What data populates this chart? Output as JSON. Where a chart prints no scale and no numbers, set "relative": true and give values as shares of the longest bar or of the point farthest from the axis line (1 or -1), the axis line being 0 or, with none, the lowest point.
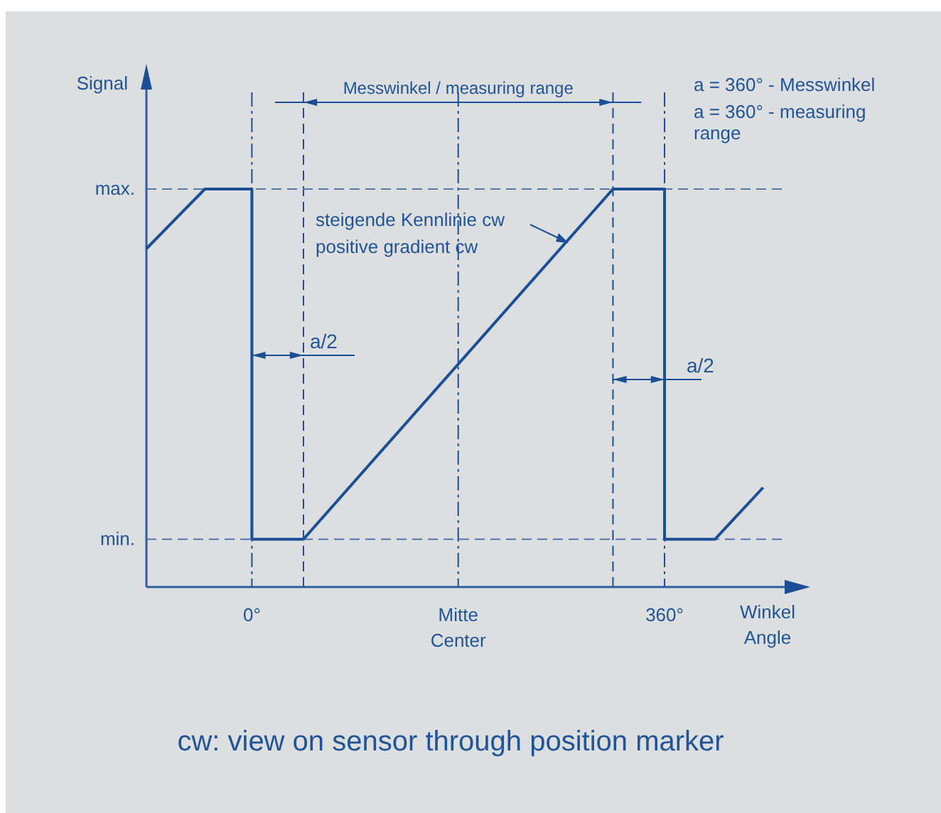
{
  "chart_data": {
    "type": "line",
    "relative": true,
    "xlabel": "Winkel\nAngle",
    "xlim": [
      -92,
      466
    ],
    "xticks": [
      {
        "value": 0,
        "label": "0°"
      },
      {
        "value": 180,
        "label": "Mitte\nCenter"
      },
      {
        "value": 360,
        "label": "360°"
      }
    ],
    "series": [
      {
        "color": "#1a4f96",
        "x": [
          -92,
          -41,
          0,
          0,
          45,
          315,
          360,
          360,
          404,
          446
        ],
        "values": [
          0.85,
          1,
          1,
          0.12,
          0.12,
          1,
          1,
          0.12,
          0.12,
          0.25
        ]
      }
    ],
    "ref_lines": [
      {
        "axis": "x",
        "value": 0,
        "line_style": "dotted"
      },
      {
        "axis": "x",
        "value": 45,
        "line_style": "dashed"
      },
      {
        "axis": "x",
        "value": 180,
        "line_style": "dotted"
      },
      {
        "axis": "x",
        "value": 315,
        "line_style": "dashed"
      },
      {
        "axis": "x",
        "value": 360,
        "line_style": "dotted"
      },
      {
        "axis": "y",
        "value": 0.12,
        "line_style": "dashed",
        "label": "min."
      },
      {
        "axis": "y",
        "value": 1,
        "line_style": "dashed",
        "label": "max."
      }
    ],
    "annotations": [
      "steigende Kennlinie cw\npositive gradient cw",
      "Messwinkel / measuring range",
      "a = 360° - Messwinkel",
      "a = 360° - measuring\nrange",
      "a/2",
      "a/2",
      "cw: view on sensor through position marker",
      "Signal"
    ],
    "line_style": "solid"
  }
}
